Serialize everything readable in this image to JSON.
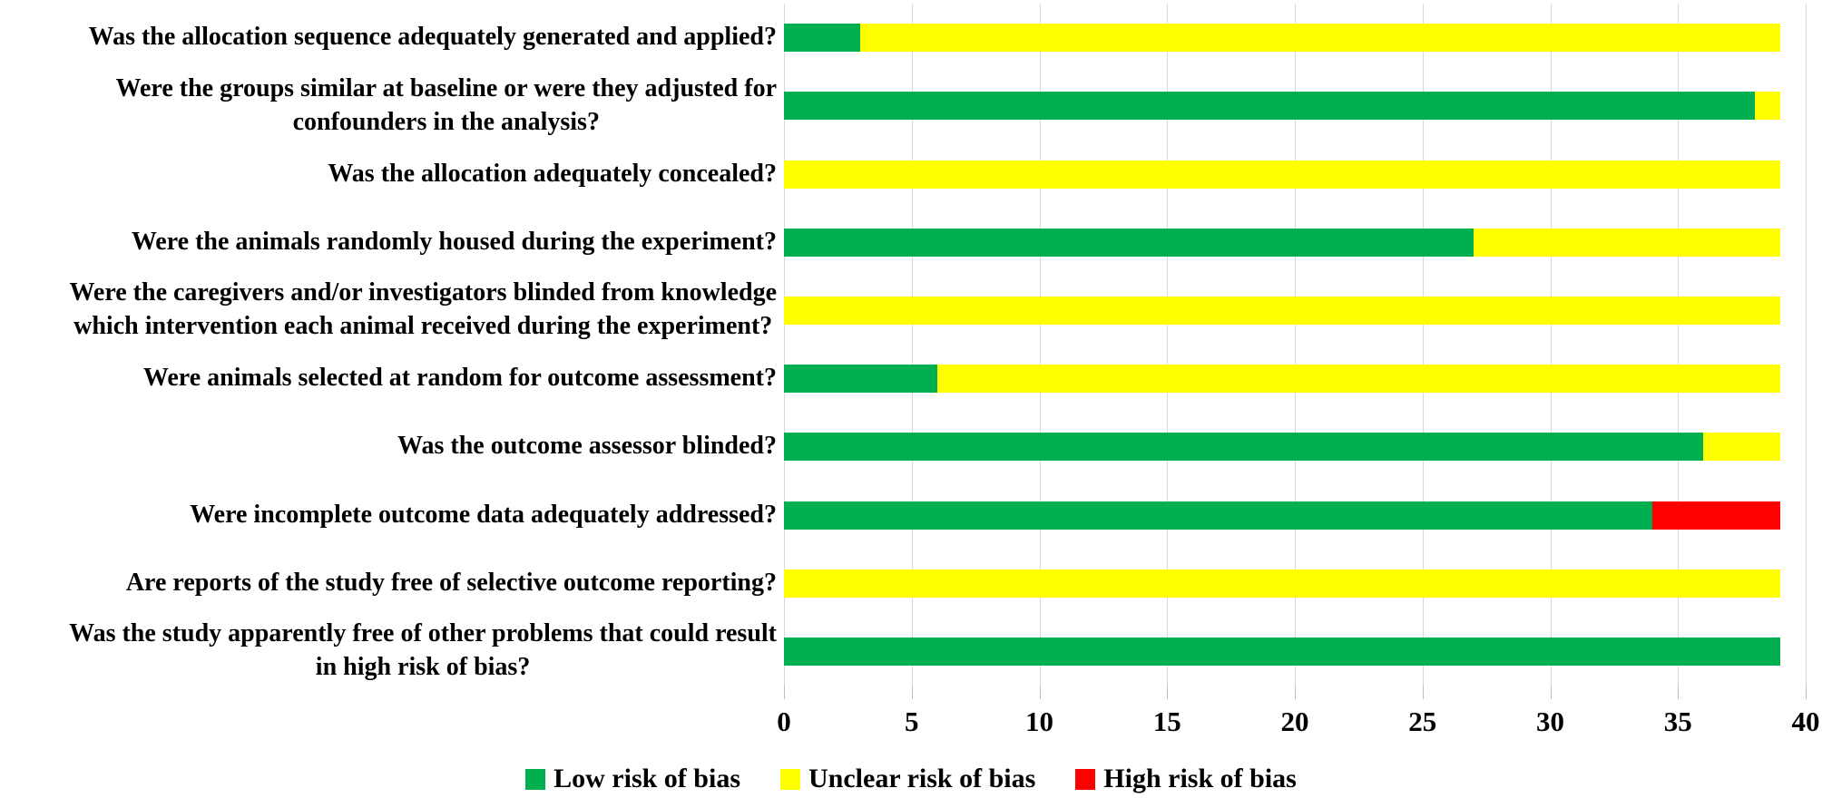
{
  "chart_data": {
    "type": "bar",
    "stacked": true,
    "orientation": "horizontal",
    "title": "",
    "xlabel": "",
    "ylabel": "",
    "xlim": [
      0,
      40
    ],
    "x_ticks": [
      0,
      5,
      10,
      15,
      20,
      25,
      30,
      35,
      40
    ],
    "grid": "vertical",
    "legend_position": "bottom",
    "total_per_category": 39,
    "categories": [
      [
        "Was the allocation sequence adequately generated and applied?"
      ],
      [
        "Were the groups similar at baseline or were they adjusted for",
        "confounders in the analysis?"
      ],
      [
        "Was the allocation adequately concealed?"
      ],
      [
        "Were the animals randomly housed during the experiment?"
      ],
      [
        "Were the caregivers and/or investigators blinded from knowledge",
        "which intervention each animal received during the experiment?"
      ],
      [
        "Were animals selected at random for outcome assessment?"
      ],
      [
        "Was the outcome assessor blinded?"
      ],
      [
        "Were incomplete outcome data adequately addressed?"
      ],
      [
        "Are reports of the study free of selective outcome reporting?"
      ],
      [
        "Was the study apparently free of other problems that could result",
        "in high risk of bias?"
      ]
    ],
    "series": [
      {
        "name": "Low risk of bias",
        "color": "#00b050",
        "values": [
          3,
          38,
          0,
          27,
          0,
          6,
          36,
          34,
          0,
          39
        ]
      },
      {
        "name": "Unclear risk of bias",
        "color": "#ffff00",
        "values": [
          36,
          1,
          39,
          12,
          39,
          33,
          3,
          0,
          39,
          0
        ]
      },
      {
        "name": "High risk of bias",
        "color": "#ff0000",
        "values": [
          0,
          0,
          0,
          0,
          0,
          0,
          0,
          5,
          0,
          0
        ]
      }
    ]
  },
  "colors": {
    "background": "#ffffff",
    "gridline": "#d9d9d9",
    "tick": "#bfbfbf",
    "text": "#000000"
  }
}
